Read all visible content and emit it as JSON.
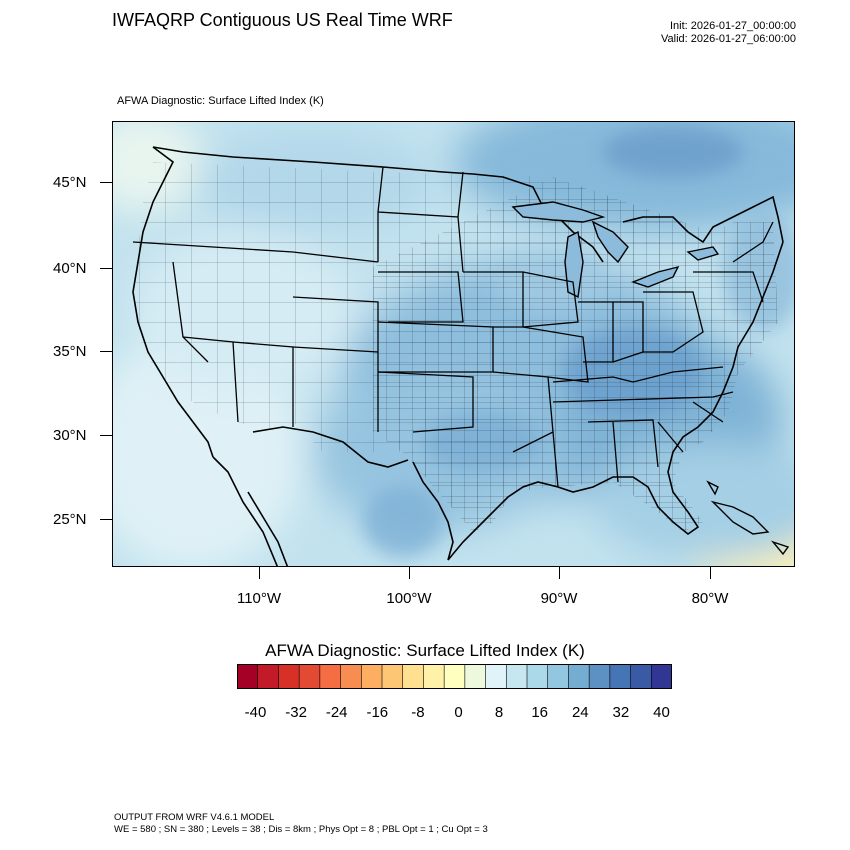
{
  "header": {
    "title": "IWFAQRP Contiguous US Real Time WRF",
    "init": "Init: 2026-01-27_00:00:00",
    "valid": "Valid: 2026-01-27_06:00:00"
  },
  "field": {
    "label": "AFWA Diagnostic: Surface Lifted Index   (K)"
  },
  "map": {
    "lat_labels": [
      "45°N",
      "40°N",
      "35°N",
      "30°N",
      "25°N"
    ],
    "lon_labels": [
      "110°W",
      "100°W",
      "90°W",
      "80°W"
    ]
  },
  "colorbar": {
    "title": "AFWA Diagnostic: Surface Lifted Index  (K)",
    "ticks": [
      "-40",
      "-32",
      "-24",
      "-16",
      "-8",
      "0",
      "8",
      "16",
      "24",
      "32",
      "40"
    ],
    "colors": [
      "#a50026",
      "#c21a28",
      "#d73027",
      "#e34a33",
      "#f46d43",
      "#f88d52",
      "#fdae61",
      "#fdc674",
      "#fee090",
      "#fff1a8",
      "#ffffbf",
      "#eef8dc",
      "#e0f3f8",
      "#c6e6f0",
      "#abd9e9",
      "#93c6df",
      "#74add1",
      "#5e91c3",
      "#4575b4",
      "#3b5aa6",
      "#313695"
    ]
  },
  "footer": {
    "line1": "OUTPUT FROM WRF V4.6.1 MODEL",
    "line2": "WE = 580 ; SN = 380 ; Levels = 38 ; Dis = 8km ; Phys Opt = 8 ; PBL Opt = 1 ; Cu Opt = 3"
  }
}
